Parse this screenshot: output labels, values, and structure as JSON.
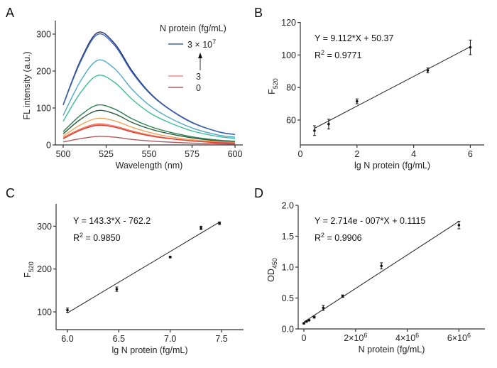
{
  "panels": [
    "A",
    "B",
    "C",
    "D"
  ],
  "chart_data": [
    {
      "panel": "A",
      "type": "line",
      "xlabel": "Wavelength (nm)",
      "ylabel": "FL intensity (a.u.)",
      "xlim": [
        500,
        600
      ],
      "ylim": [
        0,
        330
      ],
      "xticks": [
        500,
        525,
        550,
        575,
        600
      ],
      "yticks": [
        0,
        100,
        200,
        300
      ],
      "x": [
        500,
        510,
        520,
        530,
        540,
        550,
        560,
        575,
        590,
        600
      ],
      "legend": {
        "title": "N protein (fg/mL)",
        "entries": [
          {
            "label": "3 × 10",
            "sup": "7",
            "color": "#3a62b8"
          },
          {
            "label": "3",
            "color": "#f08a8a"
          },
          {
            "label": "0",
            "color": "#b05a60"
          }
        ],
        "arrow": "increasing concentration"
      },
      "series": [
        {
          "color": "#1f3270",
          "values": [
            109,
            228,
            304,
            274,
            201,
            143,
            103,
            61,
            36,
            28
          ]
        },
        {
          "color": "#3a62b8",
          "values": [
            108,
            224,
            299,
            269,
            197,
            141,
            102,
            60,
            36,
            28
          ]
        },
        {
          "color": "#4fa9c8",
          "values": [
            80,
            172,
            229,
            206,
            151,
            108,
            78,
            46,
            27,
            21
          ]
        },
        {
          "color": "#3cbf98",
          "values": [
            64,
            141,
            188,
            169,
            124,
            88,
            64,
            38,
            23,
            18
          ]
        },
        {
          "color": "#2e8050",
          "values": [
            36,
            80,
            108,
            97,
            71,
            51,
            37,
            22,
            13,
            10
          ]
        },
        {
          "color": "#2a5e3e",
          "values": [
            30,
            69,
            93,
            84,
            61,
            44,
            32,
            19,
            11,
            9
          ]
        },
        {
          "color": "#f5a455",
          "values": [
            24,
            54,
            72,
            65,
            48,
            34,
            24,
            14,
            9,
            7
          ]
        },
        {
          "color": "#f07a58",
          "values": [
            20,
            43,
            57,
            51,
            38,
            27,
            19,
            11,
            7,
            5
          ]
        },
        {
          "color": "#f08a8a",
          "values": [
            18,
            41,
            55,
            50,
            36,
            26,
            19,
            11,
            7,
            5
          ]
        },
        {
          "color": "#e04030",
          "values": [
            17,
            40,
            53,
            48,
            35,
            25,
            18,
            11,
            6,
            5
          ]
        },
        {
          "color": "#b05a60",
          "values": [
            8,
            17,
            23,
            21,
            15,
            11,
            8,
            5,
            3,
            2
          ]
        }
      ]
    },
    {
      "panel": "B",
      "type": "scatter",
      "xlabel": "lg N protein (fg/mL)",
      "ylabel": "F",
      "ylabel_sub": "520",
      "xlim": [
        0,
        6.5
      ],
      "ylim": [
        44.7,
        120
      ],
      "xticks": [
        0,
        2,
        4,
        6
      ],
      "yticks": [
        60,
        80,
        100,
        120
      ],
      "points": [
        {
          "x": 0.5,
          "y": 53.5,
          "err": 3
        },
        {
          "x": 1,
          "y": 57.5,
          "err": 3
        },
        {
          "x": 2,
          "y": 71.5,
          "err": 1.5
        },
        {
          "x": 4.5,
          "y": 90.5,
          "err": 1.5
        },
        {
          "x": 6,
          "y": 104.7,
          "err": 4.5
        }
      ],
      "fit": {
        "slope": 9.112,
        "intercept": 50.37,
        "x_range": [
          0.5,
          6
        ],
        "equation": "Y = 9.112*X + 50.37",
        "r2_label": "R",
        "r2_value": " = 0.9771"
      }
    },
    {
      "panel": "C",
      "type": "scatter",
      "xlabel": "lg N protein (fg/mL)",
      "ylabel": "F",
      "ylabel_sub": "520",
      "xlim": [
        5.9,
        7.72
      ],
      "ylim": [
        58,
        345
      ],
      "xticks": [
        6.0,
        6.5,
        7.0,
        7.5
      ],
      "xtick_labels": [
        "6.0",
        "6.5",
        "7.0",
        "7.5"
      ],
      "yticks": [
        100,
        200,
        300
      ],
      "points": [
        {
          "x": 6.0,
          "y": 104,
          "err": 5
        },
        {
          "x": 6.48,
          "y": 153,
          "err": 5
        },
        {
          "x": 7.0,
          "y": 228,
          "err": 2
        },
        {
          "x": 7.3,
          "y": 296,
          "err": 4
        },
        {
          "x": 7.48,
          "y": 307,
          "err": 3
        }
      ],
      "fit": {
        "slope": 143.3,
        "intercept": -762.2,
        "x_range": [
          6.0,
          7.48
        ],
        "equation": "Y = 143.3*X - 762.2",
        "r2_label": "R",
        "r2_value": " = 0.9850"
      }
    },
    {
      "panel": "D",
      "type": "scatter",
      "xlabel": "N protein (fg/mL)",
      "ylabel": "OD",
      "ylabel_sub": "450",
      "xlim": [
        -220000,
        7000000
      ],
      "ylim": [
        0,
        2.0
      ],
      "xticks": [
        0,
        2000000,
        4000000,
        6000000
      ],
      "xtick_labels": [
        "0",
        "2×10",
        "4×10",
        "6×10"
      ],
      "xtick_sup": [
        "",
        "6",
        "6",
        "6"
      ],
      "yticks": [
        0,
        0.5,
        1.0,
        1.5,
        2.0
      ],
      "ytick_labels": [
        "0.0",
        "0.5",
        "1.0",
        "1.5",
        "2.0"
      ],
      "points": [
        {
          "x": 0,
          "y": 0.09,
          "err": 0.01
        },
        {
          "x": 100000,
          "y": 0.12,
          "err": 0.01
        },
        {
          "x": 200000,
          "y": 0.14,
          "err": 0.01
        },
        {
          "x": 400000,
          "y": 0.19,
          "err": 0.015
        },
        {
          "x": 750000,
          "y": 0.34,
          "err": 0.04
        },
        {
          "x": 1500000,
          "y": 0.53,
          "err": 0.02
        },
        {
          "x": 3000000,
          "y": 1.02,
          "err": 0.05
        },
        {
          "x": 6000000,
          "y": 1.68,
          "err": 0.06
        }
      ],
      "fit": {
        "slope": 2.714e-07,
        "intercept": 0.1115,
        "x_range": [
          0,
          6000000
        ],
        "equation": "Y = 2.714e - 007*X + 0.1115",
        "r2_label": "R",
        "r2_value": " = 0.9906"
      }
    }
  ]
}
